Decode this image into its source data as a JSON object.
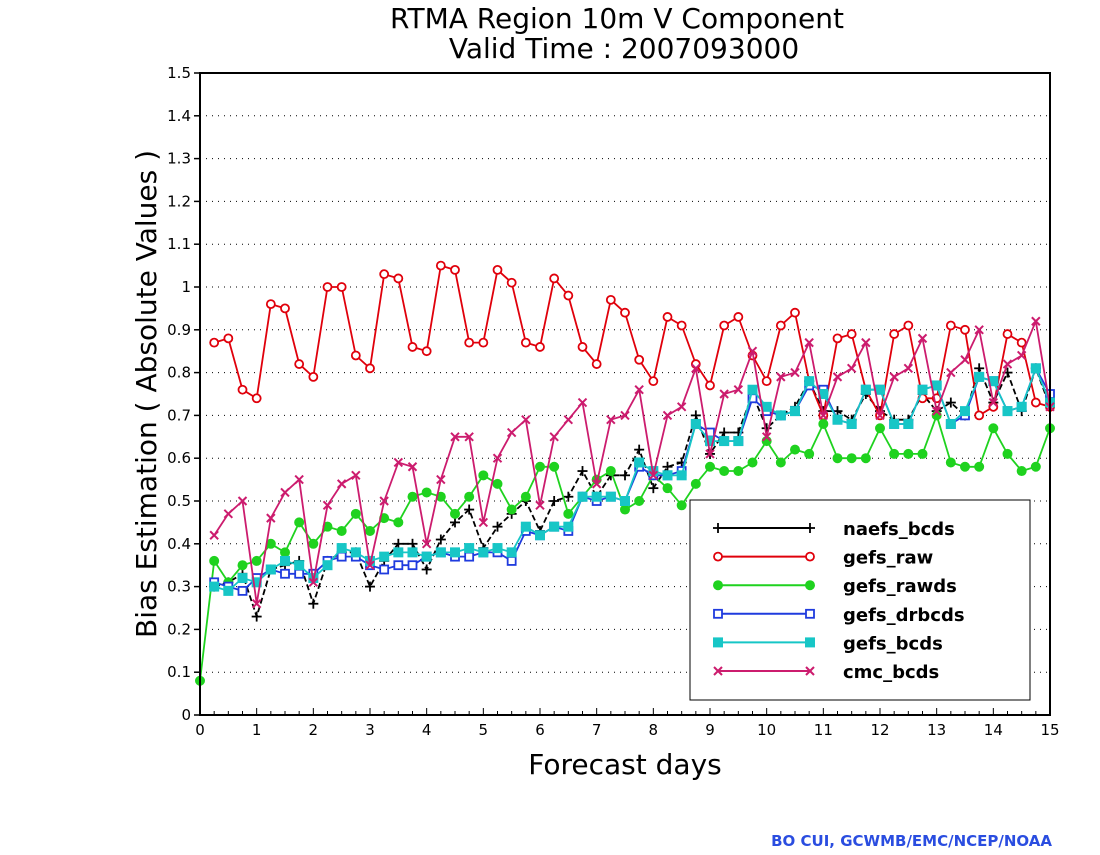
{
  "chart_data": {
    "type": "line",
    "title": "RTMA Region 10m V Component",
    "subtitle": "Valid Time : 2007093000",
    "xlabel": "Forecast days",
    "ylabel": "Bias Estimation ( Absolute Values )",
    "xlim": [
      0,
      15
    ],
    "ylim": [
      0,
      1.5
    ],
    "xticks": [
      "0",
      "1",
      "2",
      "3",
      "4",
      "5",
      "6",
      "7",
      "8",
      "9",
      "10",
      "11",
      "12",
      "13",
      "14",
      "15"
    ],
    "yticks": [
      "0",
      "0.1",
      "0.2",
      "0.3",
      "0.4",
      "0.5",
      "0.6",
      "0.7",
      "0.8",
      "0.9",
      "1",
      "1.1",
      "1.2",
      "1.3",
      "1.4",
      "1.5"
    ],
    "grid": "horizontal dotted",
    "legend_position": "lower-right",
    "x": [
      0,
      0.25,
      0.5,
      0.75,
      1,
      1.25,
      1.5,
      1.75,
      2,
      2.25,
      2.5,
      2.75,
      3,
      3.25,
      3.5,
      3.75,
      4,
      4.25,
      4.5,
      4.75,
      5,
      5.25,
      5.5,
      5.75,
      6,
      6.25,
      6.5,
      6.75,
      7,
      7.25,
      7.5,
      7.75,
      8,
      8.25,
      8.5,
      8.75,
      9,
      9.25,
      9.5,
      9.75,
      10,
      10.25,
      10.5,
      10.75,
      11,
      11.25,
      11.5,
      11.75,
      12,
      12.25,
      12.5,
      12.75,
      13,
      13.25,
      13.5,
      13.75,
      14,
      14.25,
      14.5,
      14.75,
      15
    ],
    "series": [
      {
        "name": "naefs_bcds",
        "color": "#000000",
        "marker": "plus",
        "dashed": true,
        "values": [
          null,
          0.3,
          0.31,
          0.33,
          0.23,
          0.34,
          0.35,
          0.36,
          0.26,
          0.36,
          0.38,
          0.38,
          0.3,
          0.36,
          0.4,
          0.4,
          0.34,
          0.41,
          0.45,
          0.48,
          0.39,
          0.44,
          0.47,
          0.5,
          0.43,
          0.5,
          0.51,
          0.57,
          0.51,
          0.56,
          0.56,
          0.62,
          0.53,
          0.58,
          0.59,
          0.7,
          0.61,
          0.66,
          0.66,
          0.75,
          0.67,
          0.7,
          0.72,
          0.78,
          0.71,
          0.71,
          0.69,
          0.75,
          0.71,
          0.69,
          0.69,
          0.75,
          0.71,
          0.73,
          0.7,
          0.81,
          0.73,
          0.8,
          0.71,
          0.81,
          0.72
        ]
      },
      {
        "name": "gefs_raw",
        "color": "#e0000b",
        "marker": "circle-open",
        "dashed": false,
        "values": [
          null,
          0.87,
          0.88,
          0.76,
          0.74,
          0.96,
          0.95,
          0.82,
          0.79,
          1.0,
          1.0,
          0.84,
          0.81,
          1.03,
          1.02,
          0.86,
          0.85,
          1.05,
          1.04,
          0.87,
          0.87,
          1.04,
          1.01,
          0.87,
          0.86,
          1.02,
          0.98,
          0.86,
          0.82,
          0.97,
          0.94,
          0.83,
          0.78,
          0.93,
          0.91,
          0.82,
          0.77,
          0.91,
          0.93,
          0.84,
          0.78,
          0.91,
          0.94,
          0.78,
          0.7,
          0.88,
          0.89,
          0.76,
          0.7,
          0.89,
          0.91,
          0.74,
          0.74,
          0.91,
          0.9,
          0.7,
          0.72,
          0.89,
          0.87,
          0.73,
          0.72
        ]
      },
      {
        "name": "gefs_rawds",
        "color": "#1fd21f",
        "marker": "circle-filled",
        "dashed": false,
        "values": [
          0.08,
          0.36,
          0.31,
          0.35,
          0.36,
          0.4,
          0.38,
          0.45,
          0.4,
          0.44,
          0.43,
          0.47,
          0.43,
          0.46,
          0.45,
          0.51,
          0.52,
          0.51,
          0.47,
          0.51,
          0.56,
          0.54,
          0.48,
          0.51,
          0.58,
          0.58,
          0.47,
          0.51,
          0.55,
          0.57,
          0.48,
          0.5,
          0.56,
          0.53,
          0.49,
          0.54,
          0.58,
          0.57,
          0.57,
          0.59,
          0.64,
          0.59,
          0.62,
          0.61,
          0.68,
          0.6,
          0.6,
          0.6,
          0.67,
          0.61,
          0.61,
          0.61,
          0.7,
          0.59,
          0.58,
          0.58,
          0.67,
          0.61,
          0.57,
          0.58,
          0.67
        ]
      },
      {
        "name": "gefs_drbcds",
        "color": "#1f3bde",
        "marker": "square-open",
        "dashed": false,
        "values": [
          null,
          0.31,
          0.3,
          0.29,
          0.32,
          0.34,
          0.33,
          0.33,
          0.33,
          0.36,
          0.37,
          0.37,
          0.35,
          0.34,
          0.35,
          0.35,
          0.37,
          0.38,
          0.37,
          0.37,
          0.38,
          0.38,
          0.36,
          0.43,
          0.42,
          0.44,
          0.43,
          0.51,
          0.5,
          0.51,
          0.5,
          0.58,
          0.56,
          0.56,
          0.57,
          0.68,
          0.66,
          0.64,
          0.64,
          0.74,
          0.71,
          0.7,
          0.71,
          0.77,
          0.76,
          0.69,
          0.68,
          0.76,
          0.76,
          0.68,
          0.68,
          0.76,
          0.77,
          0.68,
          0.7,
          0.79,
          0.78,
          0.71,
          0.72,
          0.81,
          0.75
        ]
      },
      {
        "name": "gefs_bcds",
        "color": "#17c6c6",
        "marker": "square-filled",
        "dashed": false,
        "values": [
          null,
          0.3,
          0.29,
          0.32,
          0.31,
          0.34,
          0.36,
          0.35,
          0.32,
          0.35,
          0.39,
          0.38,
          0.36,
          0.37,
          0.38,
          0.38,
          0.37,
          0.38,
          0.38,
          0.39,
          0.38,
          0.39,
          0.38,
          0.44,
          0.42,
          0.44,
          0.44,
          0.51,
          0.51,
          0.51,
          0.5,
          0.59,
          0.57,
          0.56,
          0.56,
          0.68,
          0.64,
          0.64,
          0.64,
          0.76,
          0.72,
          0.7,
          0.71,
          0.78,
          0.75,
          0.69,
          0.68,
          0.76,
          0.76,
          0.68,
          0.68,
          0.76,
          0.77,
          0.68,
          0.71,
          0.79,
          0.78,
          0.71,
          0.72,
          0.81,
          0.73
        ]
      },
      {
        "name": "cmc_bcds",
        "color": "#cc1c6e",
        "marker": "x",
        "dashed": false,
        "values": [
          null,
          0.42,
          0.47,
          0.5,
          0.26,
          0.46,
          0.52,
          0.55,
          0.31,
          0.49,
          0.54,
          0.56,
          0.35,
          0.5,
          0.59,
          0.58,
          0.4,
          0.55,
          0.65,
          0.65,
          0.45,
          0.6,
          0.66,
          0.69,
          0.49,
          0.65,
          0.69,
          0.73,
          0.54,
          0.69,
          0.7,
          0.76,
          0.56,
          0.7,
          0.72,
          0.81,
          0.61,
          0.75,
          0.76,
          0.85,
          0.65,
          0.79,
          0.8,
          0.87,
          0.7,
          0.79,
          0.81,
          0.87,
          0.7,
          0.79,
          0.81,
          0.88,
          0.71,
          0.8,
          0.83,
          0.9,
          0.73,
          0.82,
          0.84,
          0.92,
          0.72
        ]
      }
    ]
  },
  "credit": "BO CUI, GCWMB/EMC/NCEP/NOAA"
}
